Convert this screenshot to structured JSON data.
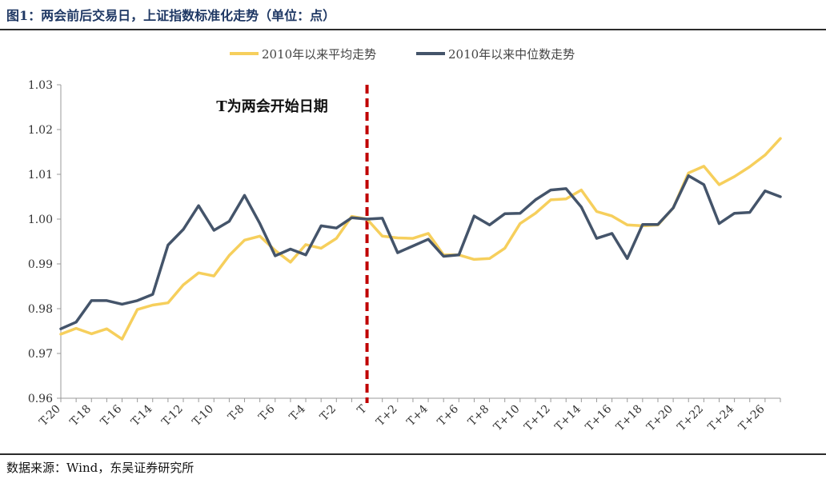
{
  "header": {
    "title": "图1：两会前后交易日，上证指数标准化走势（单位：点）"
  },
  "footer": {
    "source": "数据来源：Wind，东吴证券研究所"
  },
  "colors": {
    "avg": "#F6CF5C",
    "median": "#44546A",
    "event_line": "#C00000",
    "title": "#1F3864"
  },
  "chart_data": {
    "type": "line",
    "title": "",
    "xlabel": "",
    "ylabel": "",
    "ylim": [
      0.96,
      1.03
    ],
    "yticks": [
      "0.96",
      "0.97",
      "0.98",
      "0.99",
      "1.00",
      "1.01",
      "1.02",
      "1.03"
    ],
    "x": [
      "T-20",
      "T-19",
      "T-18",
      "T-17",
      "T-16",
      "T-15",
      "T-14",
      "T-13",
      "T-12",
      "T-11",
      "T-10",
      "T-9",
      "T-8",
      "T-7",
      "T-6",
      "T-5",
      "T-4",
      "T-3",
      "T-2",
      "T-1",
      "T",
      "T+1",
      "T+2",
      "T+3",
      "T+4",
      "T+5",
      "T+6",
      "T+7",
      "T+8",
      "T+9",
      "T+10",
      "T+11",
      "T+12",
      "T+13",
      "T+14",
      "T+15",
      "T+16",
      "T+17",
      "T+18",
      "T+19",
      "T+20",
      "T+21",
      "T+22",
      "T+23",
      "T+24",
      "T+25",
      "T+26",
      "T+27"
    ],
    "xtick_labels": [
      "T-20",
      "T-18",
      "T-16",
      "T-14",
      "T-12",
      "T-10",
      "T-8",
      "T-6",
      "T-4",
      "T-2",
      "T",
      "T+2",
      "T+4",
      "T+6",
      "T+8",
      "T+10",
      "T+12",
      "T+14",
      "T+16",
      "T+18",
      "T+20",
      "T+22",
      "T+24",
      "T+26"
    ],
    "legend_position": "top-center",
    "grid": false,
    "series": [
      {
        "name": "2010年以来平均走势",
        "color": "#F6CF5C",
        "values": [
          0.9743,
          0.9756,
          0.9744,
          0.9755,
          0.9732,
          0.9798,
          0.9808,
          0.9813,
          0.9853,
          0.988,
          0.9873,
          0.9919,
          0.9953,
          0.9962,
          0.993,
          0.9904,
          0.9943,
          0.9935,
          0.9957,
          1.0006,
          1.0,
          0.9962,
          0.9958,
          0.9957,
          0.9968,
          0.992,
          0.992,
          0.991,
          0.9912,
          0.9935,
          0.999,
          1.0013,
          1.0043,
          1.0045,
          1.0065,
          1.0017,
          1.0007,
          0.9987,
          0.9985,
          0.9987,
          1.0025,
          1.0103,
          1.0118,
          1.0077,
          1.0095,
          1.0117,
          1.0143,
          1.018
        ]
      },
      {
        "name": "2010年以来中位数走势",
        "color": "#44546A",
        "values": [
          0.9755,
          0.977,
          0.9818,
          0.9818,
          0.981,
          0.9818,
          0.9832,
          0.9942,
          0.9977,
          1.003,
          0.9975,
          0.9995,
          1.0053,
          0.999,
          0.9918,
          0.9933,
          0.992,
          0.9985,
          0.998,
          1.0003,
          1.0,
          1.0002,
          0.9925,
          0.994,
          0.9955,
          0.9917,
          0.992,
          1.0007,
          0.9987,
          1.0012,
          1.0013,
          1.0043,
          1.0065,
          1.0068,
          1.0027,
          0.9957,
          0.9968,
          0.9912,
          0.9988,
          0.9988,
          1.0025,
          1.0097,
          1.0077,
          0.999,
          1.0013,
          1.0015,
          1.0063,
          1.005
        ]
      }
    ],
    "event_line": {
      "x": "T",
      "style": "dashed"
    },
    "annotations": [
      {
        "text": "T为两会开始日期"
      }
    ]
  }
}
